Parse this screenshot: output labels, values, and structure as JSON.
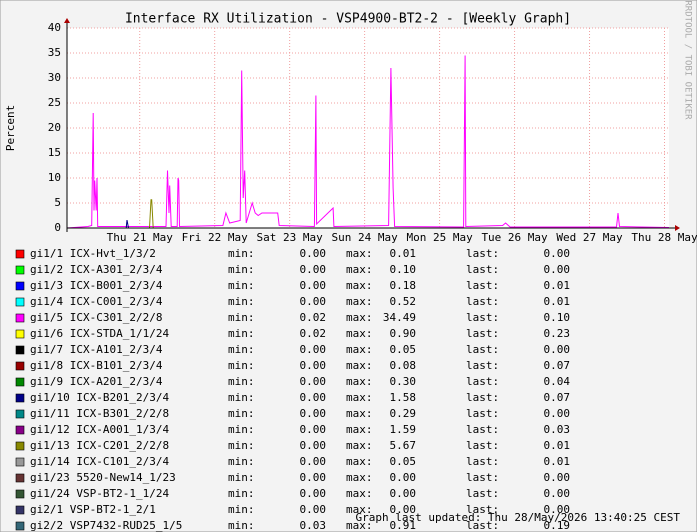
{
  "chart_data": {
    "type": "line",
    "title": "Interface RX Utilization - VSP4900-BT2-2 - [Weekly Graph]",
    "y_label": "Percent",
    "side_label": "RRDTOOL / TOBI OETIKER",
    "footer": "Graph last updated: Thu 28/May/2026 13:40:25 CEST",
    "xlim": [
      0,
      8.03
    ],
    "ylim": [
      0,
      40
    ],
    "yticks": [
      0,
      5,
      10,
      15,
      20,
      25,
      30,
      35,
      40
    ],
    "xticks": [
      {
        "value": 0.97,
        "label": "Thu 21 May"
      },
      {
        "value": 1.97,
        "label": "Fri 22 May"
      },
      {
        "value": 2.97,
        "label": "Sat 23 May"
      },
      {
        "value": 3.97,
        "label": "Sun 24 May"
      },
      {
        "value": 4.97,
        "label": "Mon 25 May"
      },
      {
        "value": 5.97,
        "label": "Tue 26 May"
      },
      {
        "value": 6.97,
        "label": "Wed 27 May"
      },
      {
        "value": 7.97,
        "label": "Thu 28 May"
      }
    ],
    "grid": true,
    "stat_labels": [
      "min:",
      "max:",
      "last:"
    ],
    "series": [
      {
        "name": "gi1/1 ICX-Hvt_1/3/2",
        "color": "#ff0000",
        "stats": {
          "min": "0.00",
          "max": "0.01",
          "last": "0.00"
        }
      },
      {
        "name": "gi1/2 ICX-A301_2/3/4",
        "color": "#00ff00",
        "stats": {
          "min": "0.00",
          "max": "0.10",
          "last": "0.00"
        }
      },
      {
        "name": "gi1/3 ICX-B001_2/3/4",
        "color": "#0000ff",
        "stats": {
          "min": "0.00",
          "max": "0.18",
          "last": "0.01"
        }
      },
      {
        "name": "gi1/4 ICX-C001_2/3/4",
        "color": "#00ffff",
        "stats": {
          "min": "0.00",
          "max": "0.52",
          "last": "0.01"
        }
      },
      {
        "name": "gi1/5 ICX-C301_2/2/8",
        "color": "#ff00ff",
        "stats": {
          "min": "0.02",
          "max": "34.49",
          "last": "0.10"
        },
        "x": [
          0,
          0.28,
          0.33,
          0.35,
          0.36,
          0.37,
          0.39,
          0.4,
          0.41,
          1.32,
          1.34,
          1.36,
          1.37,
          1.39,
          1.47,
          1.48,
          1.49,
          1.5,
          2.08,
          2.12,
          2.17,
          2.31,
          2.33,
          2.35,
          2.37,
          2.39,
          2.47,
          2.51,
          2.55,
          2.6,
          2.81,
          2.83,
          3.3,
          3.32,
          3.33,
          3.55,
          3.56,
          4.29,
          4.32,
          4.35,
          4.37,
          5.29,
          5.31,
          5.32,
          5.81,
          5.85,
          5.91,
          7.33,
          7.35,
          7.37,
          8.03
        ],
        "values": [
          0,
          0.3,
          0.5,
          23,
          3.5,
          9.5,
          3.5,
          10,
          0.3,
          0.3,
          11.5,
          3,
          8.5,
          0.3,
          0.3,
          10,
          9.5,
          0.3,
          0.5,
          3,
          1,
          1.5,
          31.5,
          6,
          11.5,
          1,
          5,
          3,
          2.5,
          3,
          3,
          0.5,
          0.3,
          26.5,
          0.8,
          4,
          0.3,
          0.5,
          32,
          8,
          0.3,
          0.2,
          34.49,
          0.3,
          0.5,
          1,
          0.2,
          0.2,
          3,
          0.3,
          0.1
        ]
      },
      {
        "name": "gi1/6 ICX-STDA_1/1/24",
        "color": "#ffff00",
        "stats": {
          "min": "0.02",
          "max": "0.90",
          "last": "0.23"
        }
      },
      {
        "name": "gi1/7 ICX-A101_2/3/4",
        "color": "#000000",
        "stats": {
          "min": "0.00",
          "max": "0.05",
          "last": "0.00"
        }
      },
      {
        "name": "gi1/8 ICX-B101_2/3/4",
        "color": "#990000",
        "stats": {
          "min": "0.00",
          "max": "0.08",
          "last": "0.07"
        }
      },
      {
        "name": "gi1/9 ICX-A201_2/3/4",
        "color": "#008800",
        "stats": {
          "min": "0.00",
          "max": "0.30",
          "last": "0.04"
        }
      },
      {
        "name": "gi1/10 ICX-B201_2/3/4",
        "color": "#000088",
        "stats": {
          "min": "0.00",
          "max": "1.58",
          "last": "0.07"
        },
        "x": [
          0,
          0.79,
          0.8,
          0.82,
          8.03
        ],
        "values": [
          0,
          0,
          1.58,
          0,
          0
        ]
      },
      {
        "name": "gi1/11 ICX-B301_2/2/8",
        "color": "#008888",
        "stats": {
          "min": "0.00",
          "max": "0.29",
          "last": "0.00"
        }
      },
      {
        "name": "gi1/12 ICX-A001_1/3/4",
        "color": "#880088",
        "stats": {
          "min": "0.00",
          "max": "1.59",
          "last": "0.03"
        }
      },
      {
        "name": "gi1/13 ICX-C201_2/2/8",
        "color": "#888800",
        "stats": {
          "min": "0.00",
          "max": "5.67",
          "last": "0.01"
        },
        "x": [
          0,
          1.1,
          1.12,
          1.13,
          1.15,
          8.03
        ],
        "values": [
          0,
          0,
          5.67,
          5.67,
          0,
          0
        ]
      },
      {
        "name": "gi1/14 ICX-C101_2/3/4",
        "color": "#999999",
        "stats": {
          "min": "0.00",
          "max": "0.05",
          "last": "0.01"
        }
      },
      {
        "name": "gi1/23 5520-New14_1/23",
        "color": "#663333",
        "stats": {
          "min": "0.00",
          "max": "0.00",
          "last": "0.00"
        }
      },
      {
        "name": "gi1/24 VSP-BT2-1_1/24",
        "color": "#335533",
        "stats": {
          "min": "0.00",
          "max": "0.00",
          "last": "0.00"
        }
      },
      {
        "name": "gi2/1 VSP-BT2-1_2/1",
        "color": "#333366",
        "stats": {
          "min": "0.00",
          "max": "0.00",
          "last": "0.00"
        }
      },
      {
        "name": "gi2/2 VSP7432-RUD25_1/5",
        "color": "#336677",
        "stats": {
          "min": "0.03",
          "max": "0.91",
          "last": "0.19"
        }
      }
    ]
  }
}
